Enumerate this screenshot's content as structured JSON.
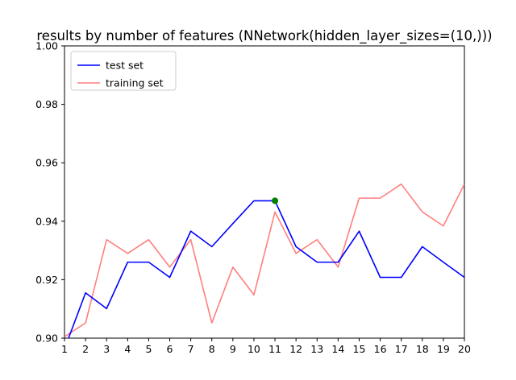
{
  "chart_data": {
    "type": "line",
    "title": "results by number of features (NNetwork(hidden_layer_sizes=(10,)))",
    "xlabel": "",
    "ylabel": "",
    "xlim": [
      1,
      20
    ],
    "ylim": [
      0.9,
      1.0
    ],
    "x": [
      1,
      2,
      3,
      4,
      5,
      6,
      7,
      8,
      9,
      10,
      11,
      12,
      13,
      14,
      15,
      16,
      17,
      18,
      19,
      20
    ],
    "x_ticks": [
      "1",
      "2",
      "3",
      "4",
      "5",
      "6",
      "7",
      "8",
      "9",
      "10",
      "11",
      "12",
      "13",
      "14",
      "15",
      "16",
      "17",
      "18",
      "19",
      "20"
    ],
    "y_ticks": [
      "0.90",
      "0.92",
      "0.94",
      "0.96",
      "0.98",
      "1.00"
    ],
    "grid": false,
    "legend_position": "upper-left",
    "series": [
      {
        "name": "test set",
        "color": "#0000ff",
        "values": [
          0.8963,
          0.9155,
          0.9101,
          0.926,
          0.926,
          0.9208,
          0.9366,
          0.9313,
          0.9392,
          0.947,
          0.947,
          0.9313,
          0.926,
          0.926,
          0.9366,
          0.9208,
          0.9208,
          0.9313,
          0.926,
          0.9208
        ]
      },
      {
        "name": "training set",
        "color": "#ff7f7f",
        "values": [
          0.9005,
          0.9052,
          0.9337,
          0.929,
          0.9337,
          0.9243,
          0.9337,
          0.9052,
          0.9243,
          0.9148,
          0.9432,
          0.929,
          0.9337,
          0.9243,
          0.9479,
          0.9479,
          0.9527,
          0.9432,
          0.9384,
          0.9527
        ]
      }
    ],
    "highlight_point": {
      "x": 11,
      "y": 0.947,
      "color": "#008000"
    }
  }
}
